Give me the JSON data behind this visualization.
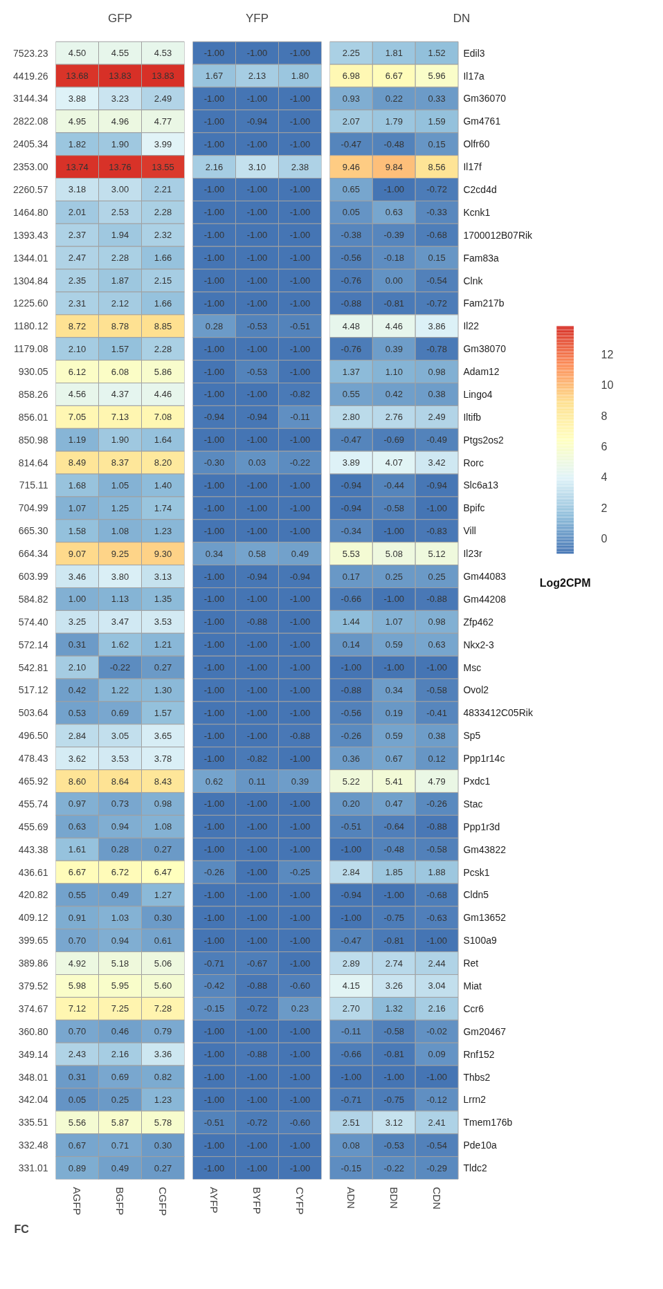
{
  "chart_data": [
    {
      "type": "heatmap",
      "title": "GFP",
      "ylabel": "FC",
      "categories": [
        "AGFP",
        "BGFP",
        "CGFP"
      ],
      "y_categories": [
        "7523.23",
        "4419.26",
        "3144.34",
        "2822.08",
        "2405.34",
        "2353.00",
        "2260.57",
        "1464.80",
        "1393.43",
        "1344.01",
        "1304.84",
        "1225.60",
        "1180.12",
        "1179.08",
        "930.05",
        "858.26",
        "856.01",
        "850.98",
        "814.64",
        "715.11",
        "704.99",
        "665.30",
        "664.34",
        "603.99",
        "584.82",
        "574.40",
        "572.14",
        "542.81",
        "517.12",
        "503.64",
        "496.50",
        "478.43",
        "465.92",
        "455.74",
        "455.69",
        "443.38",
        "436.61",
        "420.82",
        "409.12",
        "399.65",
        "389.86",
        "379.52",
        "374.67",
        "360.80",
        "349.14",
        "348.01",
        "342.04",
        "335.51",
        "332.48",
        "331.01"
      ],
      "cells": [
        [
          4.5,
          4.55,
          4.53
        ],
        [
          13.68,
          13.83,
          13.83
        ],
        [
          3.88,
          3.23,
          2.49
        ],
        [
          4.95,
          4.96,
          4.77
        ],
        [
          1.82,
          1.9,
          3.99
        ],
        [
          13.74,
          13.76,
          13.55
        ],
        [
          3.18,
          3.0,
          2.21
        ],
        [
          2.01,
          2.53,
          2.28
        ],
        [
          2.37,
          1.94,
          2.32
        ],
        [
          2.47,
          2.28,
          1.66
        ],
        [
          2.35,
          1.87,
          2.15
        ],
        [
          2.31,
          2.12,
          1.66
        ],
        [
          8.72,
          8.78,
          8.85
        ],
        [
          2.1,
          1.57,
          2.28
        ],
        [
          6.12,
          6.08,
          5.86
        ],
        [
          4.56,
          4.37,
          4.46
        ],
        [
          7.05,
          7.13,
          7.08
        ],
        [
          1.19,
          1.9,
          1.64
        ],
        [
          8.49,
          8.37,
          8.2
        ],
        [
          1.68,
          1.05,
          1.4
        ],
        [
          1.07,
          1.25,
          1.74
        ],
        [
          1.58,
          1.08,
          1.23
        ],
        [
          9.07,
          9.25,
          9.3
        ],
        [
          3.46,
          3.8,
          3.13
        ],
        [
          1.0,
          1.13,
          1.35
        ],
        [
          3.25,
          3.47,
          3.53
        ],
        [
          0.31,
          1.62,
          1.21
        ],
        [
          2.1,
          -0.22,
          0.27
        ],
        [
          0.42,
          1.22,
          1.3
        ],
        [
          0.53,
          0.69,
          1.57
        ],
        [
          2.84,
          3.05,
          3.65
        ],
        [
          3.62,
          3.53,
          3.78
        ],
        [
          8.6,
          8.64,
          8.43
        ],
        [
          0.97,
          0.73,
          0.98
        ],
        [
          0.63,
          0.94,
          1.08
        ],
        [
          1.61,
          0.28,
          0.27
        ],
        [
          6.67,
          6.72,
          6.47
        ],
        [
          0.55,
          0.49,
          1.27
        ],
        [
          0.91,
          1.03,
          0.3
        ],
        [
          0.7,
          0.94,
          0.61
        ],
        [
          4.92,
          5.18,
          5.06
        ],
        [
          5.98,
          5.95,
          5.6
        ],
        [
          7.12,
          7.25,
          7.28
        ],
        [
          0.7,
          0.46,
          0.79
        ],
        [
          2.43,
          2.16,
          3.36
        ],
        [
          0.31,
          0.69,
          0.82
        ],
        [
          0.05,
          0.25,
          1.23
        ],
        [
          5.56,
          5.87,
          5.78
        ],
        [
          0.67,
          0.71,
          0.3
        ],
        [
          0.89,
          0.49,
          0.27
        ]
      ],
      "cell_labels": [
        [
          "4.50",
          "4.55",
          "4.53"
        ],
        [
          "13.68",
          "13.83",
          "13.83"
        ],
        [
          "3.88",
          "3.23",
          "2.49"
        ],
        [
          "4.95",
          "4.96",
          "4.77"
        ],
        [
          "1.82",
          "1.90",
          "3.99"
        ],
        [
          "13.74",
          "13.76",
          "13.55"
        ],
        [
          "3.18",
          "3.00",
          "2.21"
        ],
        [
          "2.01",
          "2.53",
          "2.28"
        ],
        [
          "2.37",
          "1.94",
          "2.32"
        ],
        [
          "2.47",
          "2.28",
          "1.66"
        ],
        [
          "2.35",
          "1.87",
          "2.15"
        ],
        [
          "2.31",
          "2.12",
          "1.66"
        ],
        [
          "8.72",
          "8.78",
          "8.85"
        ],
        [
          "2.10",
          "1.57",
          "2.28"
        ],
        [
          "6.12",
          "6.08",
          "5.86"
        ],
        [
          "4.56",
          "4.37",
          "4.46"
        ],
        [
          "7.05",
          "7.13",
          "7.08"
        ],
        [
          "1.19",
          "1.90",
          "1.64"
        ],
        [
          "8.49",
          "8.37",
          "8.20"
        ],
        [
          "1.68",
          "1.05",
          "1.40"
        ],
        [
          "1.07",
          "1.25",
          "1.74"
        ],
        [
          "1.58",
          "1.08",
          "1.23"
        ],
        [
          "9.07",
          "9.25",
          "9.30"
        ],
        [
          "3.46",
          "3.80",
          "3.13"
        ],
        [
          "1.00",
          "1.13",
          "1.35"
        ],
        [
          "3.25",
          "3.47",
          "3.53"
        ],
        [
          "0.31",
          "1.62",
          "1.21"
        ],
        [
          "2.10",
          "-0.22",
          "0.27"
        ],
        [
          "0.42",
          "1.22",
          "1.30"
        ],
        [
          "0.53",
          "0.69",
          "1.57"
        ],
        [
          "2.84",
          "3.05",
          "3.65"
        ],
        [
          "3.62",
          "3.53",
          "3.78"
        ],
        [
          "8.60",
          "8.64",
          "8.43"
        ],
        [
          "0.97",
          "0.73",
          "0.98"
        ],
        [
          "0.63",
          "0.94",
          "1.08"
        ],
        [
          "1.61",
          "0.28",
          "0.27"
        ],
        [
          "6.67",
          "6.72",
          "6.47"
        ],
        [
          "0.55",
          "0.49",
          "1.27"
        ],
        [
          "0.91",
          "1.03",
          "0.30"
        ],
        [
          "0.70",
          "0.94",
          "0.61"
        ],
        [
          "4.92",
          "5.18",
          "5.06"
        ],
        [
          "5.98",
          "5.95",
          "5.60"
        ],
        [
          "7.12",
          "7.25",
          "7.28"
        ],
        [
          "0.70",
          "0.46",
          "0.79"
        ],
        [
          "2.43",
          "2.16",
          "3.36"
        ],
        [
          "0.31",
          "0.69",
          "0.82"
        ],
        [
          "0.05",
          "0.25",
          "1.23"
        ],
        [
          "5.56",
          "5.87",
          "5.78"
        ],
        [
          "0.67",
          "0.71",
          "0.30"
        ],
        [
          "0.89",
          "0.49",
          "0.27"
        ]
      ]
    },
    {
      "type": "heatmap",
      "title": "YFP",
      "tick_labels": "x",
      "y_categories": [
        "7523.23",
        "4419.26",
        "3144.34",
        "2822.08",
        "2405.34",
        "2353.00",
        "2260.57",
        "1464.80",
        "1393.43",
        "1344.01",
        "1304.84",
        "1225.60",
        "1180.12",
        "1179.08",
        "930.05",
        "858.26",
        "856.01",
        "850.98",
        "814.64",
        "715.11",
        "704.99",
        "665.30",
        "664.34",
        "603.99",
        "584.82",
        "574.40",
        "572.14",
        "542.81",
        "517.12",
        "503.64",
        "496.50",
        "478.43",
        "465.92",
        "455.74",
        "455.69",
        "443.38",
        "436.61",
        "420.82",
        "409.12",
        "399.65",
        "389.86",
        "379.52",
        "374.67",
        "360.80",
        "349.14",
        "348.01",
        "342.04",
        "335.51",
        "332.48",
        "331.01"
      ],
      "categories": [
        "AYFP",
        "BYFP",
        "CYFP"
      ],
      "cells": [
        [
          -1.0,
          -1.0,
          -1.0
        ],
        [
          1.67,
          2.13,
          1.8
        ],
        [
          -1.0,
          -1.0,
          -1.0
        ],
        [
          -1.0,
          -0.94,
          -1.0
        ],
        [
          -1.0,
          -1.0,
          -1.0
        ],
        [
          2.16,
          3.1,
          2.38
        ],
        [
          -1.0,
          -1.0,
          -1.0
        ],
        [
          -1.0,
          -1.0,
          -1.0
        ],
        [
          -1.0,
          -1.0,
          -1.0
        ],
        [
          -1.0,
          -1.0,
          -1.0
        ],
        [
          -1.0,
          -1.0,
          -1.0
        ],
        [
          -1.0,
          -1.0,
          -1.0
        ],
        [
          0.28,
          -0.53,
          -0.51
        ],
        [
          -1.0,
          -1.0,
          -1.0
        ],
        [
          -1.0,
          -0.53,
          -1.0
        ],
        [
          -1.0,
          -1.0,
          -0.82
        ],
        [
          -0.94,
          -0.94,
          -0.11
        ],
        [
          -1.0,
          -1.0,
          -1.0
        ],
        [
          -0.3,
          0.03,
          -0.22
        ],
        [
          -1.0,
          -1.0,
          -1.0
        ],
        [
          -1.0,
          -1.0,
          -1.0
        ],
        [
          -1.0,
          -1.0,
          -1.0
        ],
        [
          0.34,
          0.58,
          0.49
        ],
        [
          -1.0,
          -0.94,
          -0.94
        ],
        [
          -1.0,
          -1.0,
          -1.0
        ],
        [
          -1.0,
          -0.88,
          -1.0
        ],
        [
          -1.0,
          -1.0,
          -1.0
        ],
        [
          -1.0,
          -1.0,
          -1.0
        ],
        [
          -1.0,
          -1.0,
          -1.0
        ],
        [
          -1.0,
          -1.0,
          -1.0
        ],
        [
          -1.0,
          -1.0,
          -0.88
        ],
        [
          -1.0,
          -0.82,
          -1.0
        ],
        [
          0.62,
          0.11,
          0.39
        ],
        [
          -1.0,
          -1.0,
          -1.0
        ],
        [
          -1.0,
          -1.0,
          -1.0
        ],
        [
          -1.0,
          -1.0,
          -1.0
        ],
        [
          -0.26,
          -1.0,
          -0.25
        ],
        [
          -1.0,
          -1.0,
          -1.0
        ],
        [
          -1.0,
          -1.0,
          -1.0
        ],
        [
          -1.0,
          -1.0,
          -1.0
        ],
        [
          -0.71,
          -0.67,
          -1.0
        ],
        [
          -0.42,
          -0.88,
          -0.6
        ],
        [
          -0.15,
          -0.72,
          0.23
        ],
        [
          -1.0,
          -1.0,
          -1.0
        ],
        [
          -1.0,
          -0.88,
          -1.0
        ],
        [
          -1.0,
          -1.0,
          -1.0
        ],
        [
          -1.0,
          -1.0,
          -1.0
        ],
        [
          -0.51,
          -0.72,
          -0.6
        ],
        [
          -1.0,
          -1.0,
          -1.0
        ],
        [
          -1.0,
          -1.0,
          -1.0
        ]
      ],
      "cell_labels": [
        [
          "-1.00",
          "-1.00",
          "-1.00"
        ],
        [
          "1.67",
          "2.13",
          "1.80"
        ],
        [
          "-1.00",
          "-1.00",
          "-1.00"
        ],
        [
          "-1.00",
          "-0.94",
          "-1.00"
        ],
        [
          "-1.00",
          "-1.00",
          "-1.00"
        ],
        [
          "2.16",
          "3.10",
          "2.38"
        ],
        [
          "-1.00",
          "-1.00",
          "-1.00"
        ],
        [
          "-1.00",
          "-1.00",
          "-1.00"
        ],
        [
          "-1.00",
          "-1.00",
          "-1.00"
        ],
        [
          "-1.00",
          "-1.00",
          "-1.00"
        ],
        [
          "-1.00",
          "-1.00",
          "-1.00"
        ],
        [
          "-1.00",
          "-1.00",
          "-1.00"
        ],
        [
          "0.28",
          "-0.53",
          "-0.51"
        ],
        [
          "-1.00",
          "-1.00",
          "-1.00"
        ],
        [
          "-1.00",
          "-0.53",
          "-1.00"
        ],
        [
          "-1.00",
          "-1.00",
          "-0.82"
        ],
        [
          "-0.94",
          "-0.94",
          "-0.11"
        ],
        [
          "-1.00",
          "-1.00",
          "-1.00"
        ],
        [
          "-0.30",
          "0.03",
          "-0.22"
        ],
        [
          "-1.00",
          "-1.00",
          "-1.00"
        ],
        [
          "-1.00",
          "-1.00",
          "-1.00"
        ],
        [
          "-1.00",
          "-1.00",
          "-1.00"
        ],
        [
          "0.34",
          "0.58",
          "0.49"
        ],
        [
          "-1.00",
          "-0.94",
          "-0.94"
        ],
        [
          "-1.00",
          "-1.00",
          "-1.00"
        ],
        [
          "-1.00",
          "-0.88",
          "-1.00"
        ],
        [
          "-1.00",
          "-1.00",
          "-1.00"
        ],
        [
          "-1.00",
          "-1.00",
          "-1.00"
        ],
        [
          "-1.00",
          "-1.00",
          "-1.00"
        ],
        [
          "-1.00",
          "-1.00",
          "-1.00"
        ],
        [
          "-1.00",
          "-1.00",
          "-0.88"
        ],
        [
          "-1.00",
          "-0.82",
          "-1.00"
        ],
        [
          "0.62",
          "0.11",
          "0.39"
        ],
        [
          "-1.00",
          "-1.00",
          "-1.00"
        ],
        [
          "-1.00",
          "-1.00",
          "-1.00"
        ],
        [
          "-1.00",
          "-1.00",
          "-1.00"
        ],
        [
          "-0.26",
          "-1.00",
          "-0.25"
        ],
        [
          "-1.00",
          "-1.00",
          "-1.00"
        ],
        [
          "-1.00",
          "-1.00",
          "-1.00"
        ],
        [
          "-1.00",
          "-1.00",
          "-1.00"
        ],
        [
          "-0.71",
          "-0.67",
          "-1.00"
        ],
        [
          "-0.42",
          "-0.88",
          "-0.60"
        ],
        [
          "-0.15",
          "-0.72",
          "0.23"
        ],
        [
          "-1.00",
          "-1.00",
          "-1.00"
        ],
        [
          "-1.00",
          "-0.88",
          "-1.00"
        ],
        [
          "-1.00",
          "-1.00",
          "-1.00"
        ],
        [
          "-1.00",
          "-1.00",
          "-1.00"
        ],
        [
          "-0.51",
          "-0.72",
          "-0.60"
        ],
        [
          "-1.00",
          "-1.00",
          "-1.00"
        ],
        [
          "-1.00",
          "-1.00",
          "-1.00"
        ]
      ]
    },
    {
      "type": "heatmap",
      "title": "DN",
      "clabel": "Log2CPM",
      "clim": [
        -1,
        13.83
      ],
      "cticks": [
        0,
        2,
        4,
        6,
        8,
        10,
        12
      ],
      "categories": [
        "ADN",
        "BDN",
        "CDN"
      ],
      "y_categories": [
        "Edil3",
        "Il17a",
        "Gm36070",
        "Gm4761",
        "Olfr60",
        "Il17f",
        "C2cd4d",
        "Kcnk1",
        "1700012B07Rik",
        "Fam83a",
        "Clnk",
        "Fam217b",
        "Il22",
        "Gm38070",
        "Adam12",
        "Lingo4",
        "Iltifb",
        "Ptgs2os2",
        "Rorc",
        "Slc6a13",
        "Bpifc",
        "Vill",
        "Il23r",
        "Gm44083",
        "Gm44208",
        "Zfp462",
        "Nkx2-3",
        "Msc",
        "Ovol2",
        "4833412C05Rik",
        "Sp5",
        "Ppp1r14c",
        "Pxdc1",
        "Stac",
        "Ppp1r3d",
        "Gm43822",
        "Pcsk1",
        "Cldn5",
        "Gm13652",
        "S100a9",
        "Ret",
        "Miat",
        "Ccr6",
        "Gm20467",
        "Rnf152",
        "Thbs2",
        "Lrrn2",
        "Tmem176b",
        "Pde10a",
        "Tldc2"
      ],
      "cells": [
        [
          2.25,
          1.81,
          1.52
        ],
        [
          6.98,
          6.67,
          5.96
        ],
        [
          0.93,
          0.22,
          0.33
        ],
        [
          2.07,
          1.79,
          1.59
        ],
        [
          -0.47,
          -0.48,
          0.15
        ],
        [
          9.46,
          9.84,
          8.56
        ],
        [
          0.65,
          -1.0,
          -0.72
        ],
        [
          0.05,
          0.63,
          -0.33
        ],
        [
          -0.38,
          -0.39,
          -0.68
        ],
        [
          -0.56,
          -0.18,
          0.15
        ],
        [
          -0.76,
          0.0,
          -0.54
        ],
        [
          -0.88,
          -0.81,
          -0.72
        ],
        [
          4.48,
          4.46,
          3.86
        ],
        [
          -0.76,
          0.39,
          -0.78
        ],
        [
          1.37,
          1.1,
          0.98
        ],
        [
          0.55,
          0.42,
          0.38
        ],
        [
          2.8,
          2.76,
          2.49
        ],
        [
          -0.47,
          -0.69,
          -0.49
        ],
        [
          3.89,
          4.07,
          3.42
        ],
        [
          -0.94,
          -0.44,
          -0.94
        ],
        [
          -0.94,
          -0.58,
          -1.0
        ],
        [
          -0.34,
          -1.0,
          -0.83
        ],
        [
          5.53,
          5.08,
          5.12
        ],
        [
          0.17,
          0.25,
          0.25
        ],
        [
          -0.66,
          -1.0,
          -0.88
        ],
        [
          1.44,
          1.07,
          0.98
        ],
        [
          0.14,
          0.59,
          0.63
        ],
        [
          -1.0,
          -1.0,
          -1.0
        ],
        [
          -0.88,
          0.34,
          -0.58
        ],
        [
          -0.56,
          0.19,
          -0.41
        ],
        [
          -0.26,
          0.59,
          0.38
        ],
        [
          0.36,
          0.67,
          0.12
        ],
        [
          5.22,
          5.41,
          4.79
        ],
        [
          0.2,
          0.47,
          -0.26
        ],
        [
          -0.51,
          -0.64,
          -0.88
        ],
        [
          -1.0,
          -0.48,
          -0.58
        ],
        [
          2.84,
          1.85,
          1.88
        ],
        [
          -0.94,
          -1.0,
          -0.68
        ],
        [
          -1.0,
          -0.75,
          -0.63
        ],
        [
          -0.47,
          -0.81,
          -1.0
        ],
        [
          2.89,
          2.74,
          2.44
        ],
        [
          4.15,
          3.26,
          3.04
        ],
        [
          2.7,
          1.32,
          2.16
        ],
        [
          -0.11,
          -0.58,
          -0.02
        ],
        [
          -0.66,
          -0.81,
          0.09
        ],
        [
          -1.0,
          -1.0,
          -1.0
        ],
        [
          -0.71,
          -0.75,
          -0.12
        ],
        [
          2.51,
          3.12,
          2.41
        ],
        [
          0.08,
          -0.53,
          -0.54
        ],
        [
          -0.15,
          -0.22,
          -0.29
        ]
      ],
      "cell_labels": [
        [
          "2.25",
          "1.81",
          "1.52"
        ],
        [
          "6.98",
          "6.67",
          "5.96"
        ],
        [
          "0.93",
          "0.22",
          "0.33"
        ],
        [
          "2.07",
          "1.79",
          "1.59"
        ],
        [
          "-0.47",
          "-0.48",
          "0.15"
        ],
        [
          "9.46",
          "9.84",
          "8.56"
        ],
        [
          "0.65",
          "-1.00",
          "-0.72"
        ],
        [
          "0.05",
          "0.63",
          "-0.33"
        ],
        [
          "-0.38",
          "-0.39",
          "-0.68"
        ],
        [
          "-0.56",
          "-0.18",
          "0.15"
        ],
        [
          "-0.76",
          "0.00",
          "-0.54"
        ],
        [
          "-0.88",
          "-0.81",
          "-0.72"
        ],
        [
          "4.48",
          "4.46",
          "3.86"
        ],
        [
          "-0.76",
          "0.39",
          "-0.78"
        ],
        [
          "1.37",
          "1.10",
          "0.98"
        ],
        [
          "0.55",
          "0.42",
          "0.38"
        ],
        [
          "2.80",
          "2.76",
          "2.49"
        ],
        [
          "-0.47",
          "-0.69",
          "-0.49"
        ],
        [
          "3.89",
          "4.07",
          "3.42"
        ],
        [
          "-0.94",
          "-0.44",
          "-0.94"
        ],
        [
          "-0.94",
          "-0.58",
          "-1.00"
        ],
        [
          "-0.34",
          "-1.00",
          "-0.83"
        ],
        [
          "5.53",
          "5.08",
          "5.12"
        ],
        [
          "0.17",
          "0.25",
          "0.25"
        ],
        [
          "-0.66",
          "-1.00",
          "-0.88"
        ],
        [
          "1.44",
          "1.07",
          "0.98"
        ],
        [
          "0.14",
          "0.59",
          "0.63"
        ],
        [
          "-1.00",
          "-1.00",
          "-1.00"
        ],
        [
          "-0.88",
          "0.34",
          "-0.58"
        ],
        [
          "-0.56",
          "0.19",
          "-0.41"
        ],
        [
          "-0.26",
          "0.59",
          "0.38"
        ],
        [
          "0.36",
          "0.67",
          "0.12"
        ],
        [
          "5.22",
          "5.41",
          "4.79"
        ],
        [
          "0.20",
          "0.47",
          "-0.26"
        ],
        [
          "-0.51",
          "-0.64",
          "-0.88"
        ],
        [
          "-1.00",
          "-0.48",
          "-0.58"
        ],
        [
          "2.84",
          "1.85",
          "1.88"
        ],
        [
          "-0.94",
          "-1.00",
          "-0.68"
        ],
        [
          "-1.00",
          "-0.75",
          "-0.63"
        ],
        [
          "-0.47",
          "-0.81",
          "-1.00"
        ],
        [
          "2.89",
          "2.74",
          "2.44"
        ],
        [
          "4.15",
          "3.26",
          "3.04"
        ],
        [
          "2.70",
          "1.32",
          "2.16"
        ],
        [
          "-0.11",
          "-0.58",
          "-0.02"
        ],
        [
          "-0.66",
          "-0.81",
          "0.09"
        ],
        [
          "-1.00",
          "-1.00",
          "-1.00"
        ],
        [
          "-0.71",
          "-0.75",
          "-0.12"
        ],
        [
          "2.51",
          "3.12",
          "2.41"
        ],
        [
          "0.08",
          "-0.53",
          "-0.54"
        ],
        [
          "-0.15",
          "-0.22",
          "-0.29"
        ]
      ]
    }
  ]
}
